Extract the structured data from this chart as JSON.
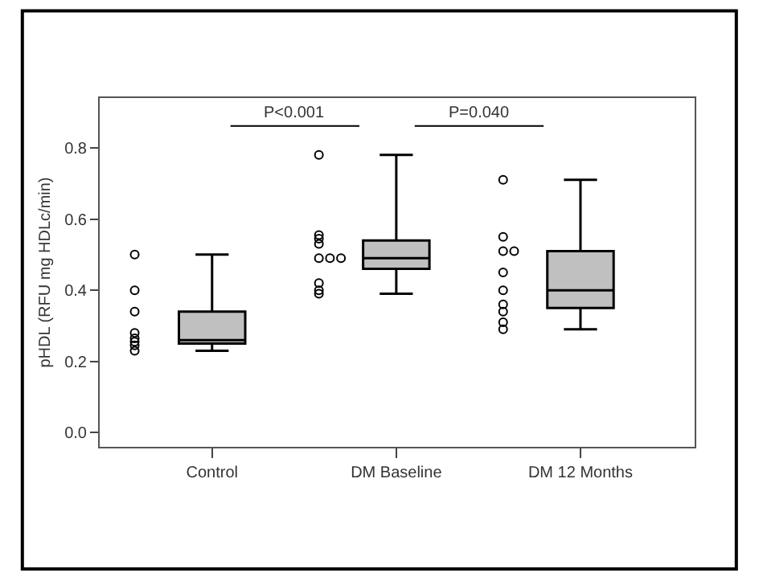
{
  "chart_data": {
    "type": "box",
    "ylabel": "pHDL (RFU mg HDLc/min)",
    "categories": [
      "Control",
      "DM Baseline",
      "DM 12 Months"
    ],
    "boxes": [
      {
        "low": 0.23,
        "q1": 0.25,
        "median": 0.26,
        "q3": 0.34,
        "high": 0.5
      },
      {
        "low": 0.39,
        "q1": 0.46,
        "median": 0.49,
        "q3": 0.54,
        "high": 0.78
      },
      {
        "low": 0.29,
        "q1": 0.35,
        "median": 0.4,
        "q3": 0.51,
        "high": 0.71
      }
    ],
    "color": "#c0c0c0",
    "series": [
      {
        "type": "scatter",
        "marker": "circle",
        "color": "#000000",
        "x": [
          "Control",
          "Control",
          "Control",
          "Control",
          "Control",
          "Control",
          "Control",
          "Control",
          "DM Baseline",
          "DM Baseline",
          "DM Baseline",
          "DM Baseline",
          "DM Baseline",
          "DM Baseline",
          "DM Baseline",
          "DM Baseline",
          "DM Baseline",
          "DM Baseline",
          "DM 12 Months",
          "DM 12 Months",
          "DM 12 Months",
          "DM 12 Months",
          "DM 12 Months",
          "DM 12 Months",
          "DM 12 Months",
          "DM 12 Months",
          "DM 12 Months",
          "DM 12 Months"
        ],
        "values": [
          0.5,
          0.4,
          0.34,
          0.28,
          0.265,
          0.255,
          0.245,
          0.23,
          0.78,
          0.555,
          0.545,
          0.53,
          0.49,
          0.49,
          0.49,
          0.42,
          0.4,
          0.39,
          0.71,
          0.55,
          0.51,
          0.51,
          0.45,
          0.4,
          0.36,
          0.34,
          0.31,
          0.29
        ]
      }
    ],
    "annotations": [
      "P<0.001",
      "P=0.040"
    ],
    "ylim": [
      -0.04,
      0.94
    ],
    "yticks": [
      {
        "value": 0,
        "label": "0.0"
      },
      {
        "value": 0.2,
        "label": "0.2"
      },
      {
        "value": 0.4,
        "label": "0.4"
      },
      {
        "value": 0.6,
        "label": "0.6"
      },
      {
        "value": 0.8,
        "label": "0.8"
      }
    ]
  }
}
